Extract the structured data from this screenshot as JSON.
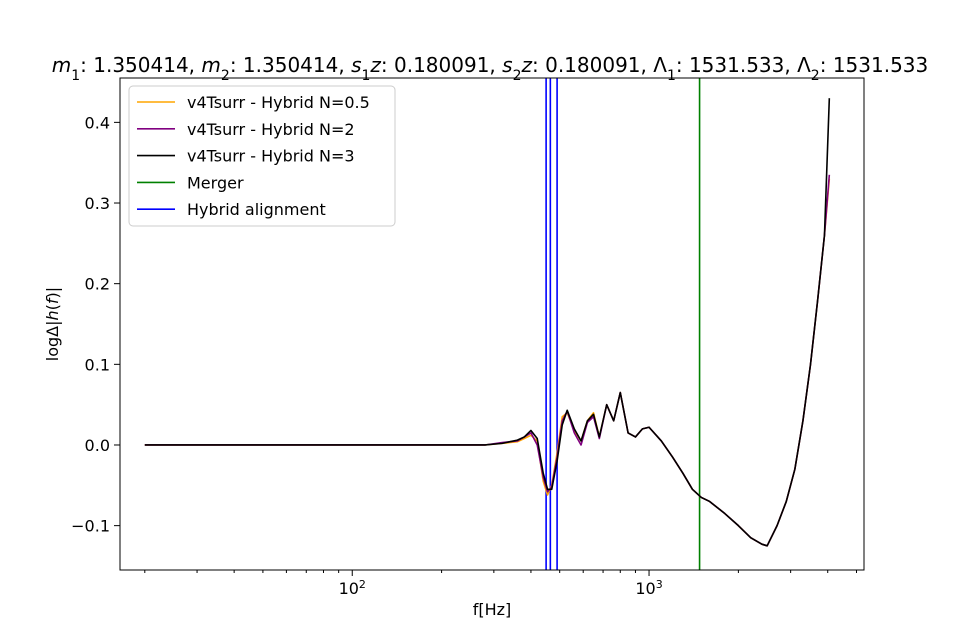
{
  "chart_data": {
    "type": "line",
    "title": "m1: 1.350414, m2: 1.350414, s1z: 0.180091, s2z: 0.180091, Λ1: 1531.533, Λ2: 1531.533",
    "title_parts": [
      {
        "text": "m",
        "style": "italic"
      },
      {
        "text": "1",
        "style": "sub"
      },
      {
        "text": ": 1.350414, "
      },
      {
        "text": "m",
        "style": "italic"
      },
      {
        "text": "2",
        "style": "sub"
      },
      {
        "text": ": 1.350414, "
      },
      {
        "text": "s",
        "style": "italic"
      },
      {
        "text": "1",
        "style": "sub"
      },
      {
        "text": "z",
        "style": "italic"
      },
      {
        "text": ": 0.180091, "
      },
      {
        "text": "s",
        "style": "italic"
      },
      {
        "text": "2",
        "style": "sub"
      },
      {
        "text": "z",
        "style": "italic"
      },
      {
        "text": ": 0.180091, "
      },
      {
        "text": "Λ"
      },
      {
        "text": "1",
        "style": "sub"
      },
      {
        "text": ": 1531.533, "
      },
      {
        "text": "Λ"
      },
      {
        "text": "2",
        "style": "sub"
      },
      {
        "text": ": 1531.533"
      }
    ],
    "xlabel": "f[Hz]",
    "ylabel": "logΔ|h(f)|",
    "ylabel_parts": [
      {
        "text": "logΔ|"
      },
      {
        "text": "h",
        "style": "italic"
      },
      {
        "text": "("
      },
      {
        "text": "f",
        "style": "italic"
      },
      {
        "text": ")|"
      }
    ],
    "x_scale": "log",
    "xlim": [
      16.5,
      5300
    ],
    "ylim": [
      -0.155,
      0.455
    ],
    "x_ticks": [
      {
        "value": 100,
        "base": "10",
        "exp": "2"
      },
      {
        "value": 1000,
        "base": "10",
        "exp": "3"
      }
    ],
    "y_ticks": [
      {
        "value": -0.1,
        "label": "−0.1"
      },
      {
        "value": 0.0,
        "label": "0.0"
      },
      {
        "value": 0.1,
        "label": "0.1"
      },
      {
        "value": 0.2,
        "label": "0.2"
      },
      {
        "value": 0.3,
        "label": "0.3"
      },
      {
        "value": 0.4,
        "label": "0.4"
      }
    ],
    "grid": false,
    "legend": {
      "placement": "top-left",
      "entries": [
        {
          "name": "v4Tsurr - Hybrid N=0.5",
          "color": "#ffa500"
        },
        {
          "name": "v4Tsurr - Hybrid N=2",
          "color": "#800080"
        },
        {
          "name": "v4Tsurr - Hybrid N=3",
          "color": "#000000"
        },
        {
          "name": "Merger",
          "color": "#008000"
        },
        {
          "name": "Hybrid alignment",
          "color": "#0000ff"
        }
      ]
    },
    "vlines": [
      {
        "name": "Merger",
        "x": 1480,
        "color": "#008000"
      },
      {
        "name": "Hybrid alignment",
        "x": 450,
        "color": "#0000ff"
      },
      {
        "name": "Hybrid alignment",
        "x": 465,
        "color": "#0000ff"
      },
      {
        "name": "Hybrid alignment",
        "x": 490,
        "color": "#0000ff"
      }
    ],
    "series": [
      {
        "name": "v4Tsurr - Hybrid N=0.5",
        "color": "#ffa500",
        "x": [
          20,
          100,
          200,
          280,
          320,
          360,
          380,
          400,
          420,
          440,
          455,
          470,
          490,
          510,
          530,
          560,
          590,
          620,
          650,
          680,
          720,
          760,
          800,
          850,
          900,
          950,
          1000,
          1100,
          1200,
          1300,
          1400,
          1500,
          1600,
          1800,
          2000,
          2200,
          2400,
          2500,
          2700,
          2900,
          3100,
          3300,
          3500,
          3700,
          3900,
          4050
        ],
        "y": [
          0.0,
          0.0,
          0.0,
          0.0,
          0.002,
          0.004,
          0.008,
          0.012,
          0.005,
          -0.045,
          -0.062,
          -0.05,
          -0.01,
          0.035,
          0.04,
          0.018,
          0.005,
          0.03,
          0.04,
          0.01,
          0.05,
          0.03,
          0.065,
          0.015,
          0.01,
          0.02,
          0.022,
          0.005,
          -0.015,
          -0.035,
          -0.055,
          -0.065,
          -0.07,
          -0.085,
          -0.1,
          -0.115,
          -0.123,
          -0.125,
          -0.1,
          -0.07,
          -0.03,
          0.03,
          0.1,
          0.18,
          0.26,
          0.33
        ]
      },
      {
        "name": "v4Tsurr - Hybrid N=2",
        "color": "#800080",
        "x": [
          20,
          100,
          200,
          280,
          320,
          360,
          380,
          400,
          420,
          440,
          455,
          470,
          490,
          510,
          530,
          560,
          590,
          620,
          650,
          680,
          720,
          760,
          800,
          850,
          900,
          950,
          1000,
          1100,
          1200,
          1300,
          1400,
          1500,
          1600,
          1800,
          2000,
          2200,
          2400,
          2500,
          2700,
          2900,
          3100,
          3300,
          3500,
          3700,
          3900,
          4050
        ],
        "y": [
          0.0,
          0.0,
          0.0,
          0.0,
          0.003,
          0.005,
          0.01,
          0.015,
          0.0,
          -0.04,
          -0.058,
          -0.052,
          -0.015,
          0.03,
          0.042,
          0.015,
          0.0,
          0.028,
          0.035,
          0.008,
          0.05,
          0.03,
          0.065,
          0.015,
          0.01,
          0.02,
          0.022,
          0.005,
          -0.015,
          -0.035,
          -0.055,
          -0.065,
          -0.07,
          -0.085,
          -0.1,
          -0.115,
          -0.123,
          -0.125,
          -0.1,
          -0.07,
          -0.03,
          0.03,
          0.1,
          0.18,
          0.26,
          0.335
        ]
      },
      {
        "name": "v4Tsurr - Hybrid N=3",
        "color": "#000000",
        "x": [
          20,
          100,
          200,
          280,
          320,
          360,
          380,
          400,
          420,
          440,
          455,
          470,
          490,
          510,
          530,
          560,
          590,
          620,
          650,
          680,
          720,
          760,
          800,
          850,
          900,
          950,
          1000,
          1100,
          1200,
          1300,
          1400,
          1500,
          1600,
          1800,
          2000,
          2200,
          2400,
          2500,
          2700,
          2900,
          3100,
          3300,
          3500,
          3700,
          3900,
          4050
        ],
        "y": [
          0.0,
          0.0,
          0.0,
          0.0,
          0.002,
          0.006,
          0.01,
          0.018,
          0.008,
          -0.035,
          -0.055,
          -0.055,
          -0.02,
          0.025,
          0.043,
          0.02,
          0.005,
          0.03,
          0.038,
          0.01,
          0.05,
          0.03,
          0.065,
          0.015,
          0.01,
          0.02,
          0.022,
          0.005,
          -0.015,
          -0.035,
          -0.055,
          -0.065,
          -0.07,
          -0.085,
          -0.1,
          -0.115,
          -0.123,
          -0.125,
          -0.1,
          -0.07,
          -0.03,
          0.03,
          0.1,
          0.18,
          0.26,
          0.43
        ]
      }
    ]
  }
}
